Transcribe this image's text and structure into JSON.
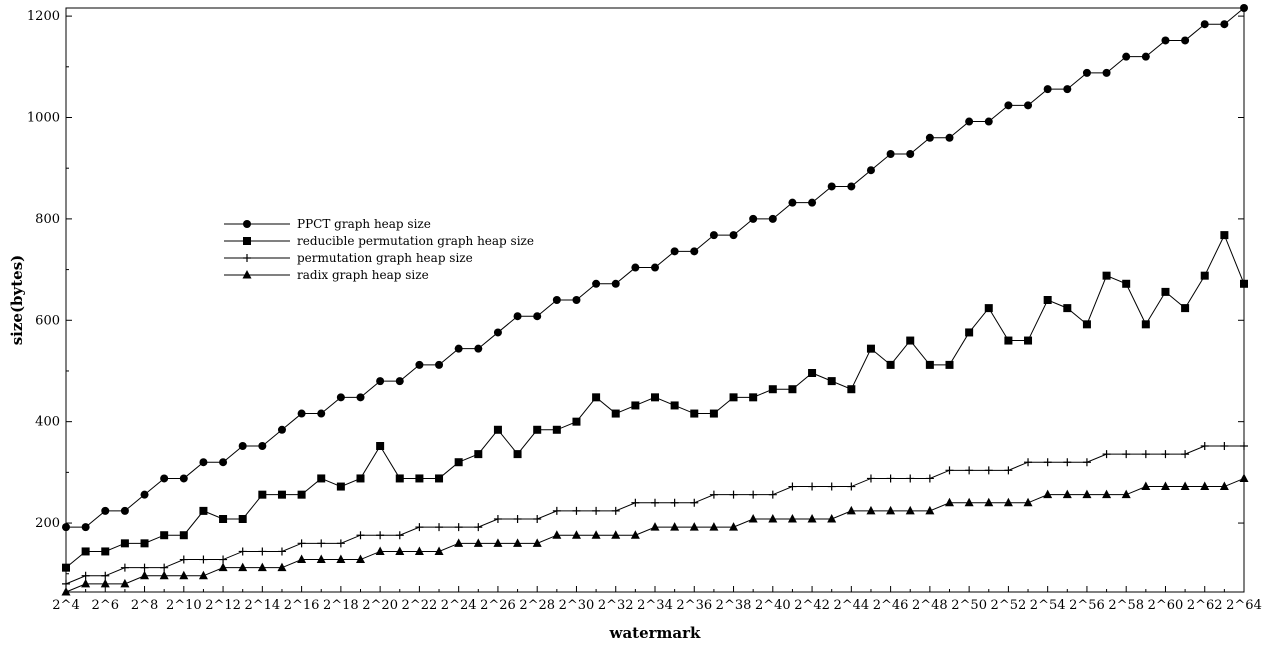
{
  "chart_data": {
    "type": "line",
    "xlabel": "watermark",
    "ylabel": "size(bytes)",
    "ylim": [
      64,
      1216
    ],
    "yticks": [
      200,
      400,
      600,
      800,
      1000,
      1200
    ],
    "grid": false,
    "legend_position": "center-left",
    "x": [
      4,
      5,
      6,
      7,
      8,
      9,
      10,
      11,
      12,
      13,
      14,
      15,
      16,
      17,
      18,
      19,
      20,
      21,
      22,
      23,
      24,
      25,
      26,
      27,
      28,
      29,
      30,
      31,
      32,
      33,
      34,
      35,
      36,
      37,
      38,
      39,
      40,
      41,
      42,
      43,
      44,
      45,
      46,
      47,
      48,
      49,
      50,
      51,
      52,
      53,
      54,
      55,
      56,
      57,
      58,
      59,
      60,
      61,
      62,
      63,
      64
    ],
    "x_tick_labels": [
      "2^4",
      "2^6",
      "2^8",
      "2^10",
      "2^12",
      "2^14",
      "2^16",
      "2^18",
      "2^20",
      "2^22",
      "2^24",
      "2^26",
      "2^28",
      "2^30",
      "2^32",
      "2^34",
      "2^36",
      "2^38",
      "2^40",
      "2^42",
      "2^44",
      "2^46",
      "2^48",
      "2^50",
      "2^52",
      "2^54",
      "2^56",
      "2^58",
      "2^60",
      "2^62",
      "2^64"
    ],
    "series": [
      {
        "name": "PPCT graph heap size",
        "marker": "circle",
        "values": [
          192,
          192,
          224,
          224,
          256,
          288,
          288,
          320,
          320,
          352,
          352,
          384,
          416,
          416,
          448,
          448,
          480,
          480,
          512,
          512,
          544,
          544,
          576,
          608,
          608,
          640,
          640,
          672,
          672,
          704,
          704,
          736,
          736,
          768,
          768,
          800,
          800,
          832,
          832,
          864,
          864,
          896,
          928,
          928,
          960,
          960,
          992,
          992,
          1024,
          1024,
          1056,
          1056,
          1088,
          1088,
          1120,
          1120,
          1152,
          1152,
          1184,
          1184,
          1216
        ]
      },
      {
        "name": "reducible permutation graph heap size",
        "marker": "square",
        "values": [
          112,
          144,
          144,
          160,
          160,
          176,
          176,
          224,
          208,
          208,
          256,
          256,
          256,
          288,
          272,
          288,
          352,
          288,
          288,
          288,
          320,
          336,
          384,
          336,
          384,
          384,
          400,
          448,
          416,
          432,
          448,
          432,
          416,
          416,
          448,
          448,
          464,
          464,
          496,
          480,
          464,
          544,
          512,
          560,
          512,
          512,
          576,
          624,
          560,
          560,
          640,
          624,
          592,
          688,
          672,
          592,
          656,
          624,
          688,
          768,
          672
        ]
      },
      {
        "name": "permutation graph heap size",
        "marker": "plus",
        "values": [
          80,
          96,
          96,
          112,
          112,
          112,
          128,
          128,
          128,
          144,
          144,
          144,
          160,
          160,
          160,
          176,
          176,
          176,
          192,
          192,
          192,
          192,
          208,
          208,
          208,
          224,
          224,
          224,
          224,
          240,
          240,
          240,
          240,
          256,
          256,
          256,
          256,
          272,
          272,
          272,
          272,
          288,
          288,
          288,
          288,
          304,
          304,
          304,
          304,
          320,
          320,
          320,
          320,
          336,
          336,
          336,
          336,
          336,
          352,
          352,
          352
        ]
      },
      {
        "name": "radix graph heap size",
        "marker": "triangle",
        "values": [
          64,
          80,
          80,
          80,
          96,
          96,
          96,
          96,
          112,
          112,
          112,
          112,
          128,
          128,
          128,
          128,
          144,
          144,
          144,
          144,
          160,
          160,
          160,
          160,
          160,
          176,
          176,
          176,
          176,
          176,
          192,
          192,
          192,
          192,
          192,
          208,
          208,
          208,
          208,
          208,
          224,
          224,
          224,
          224,
          224,
          240,
          240,
          240,
          240,
          240,
          256,
          256,
          256,
          256,
          256,
          272,
          272,
          272,
          272,
          272,
          288
        ]
      }
    ]
  }
}
